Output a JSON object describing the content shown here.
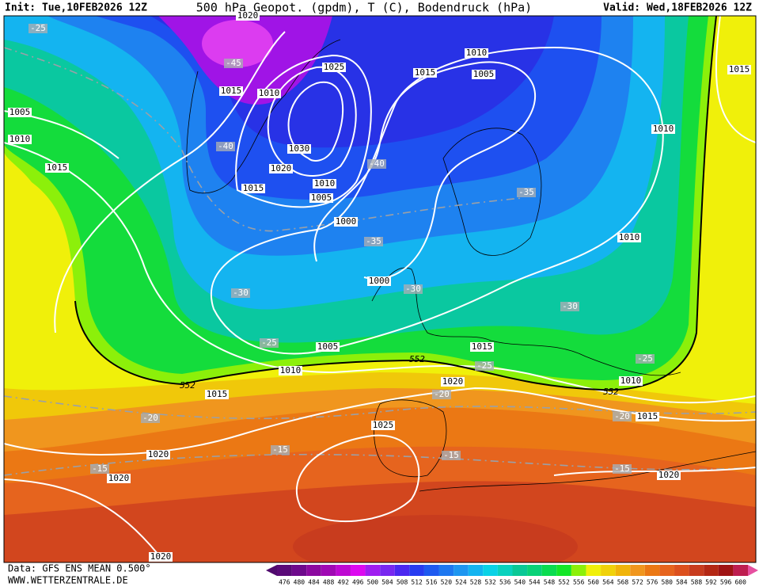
{
  "header": {
    "init": "Init: Tue,10FEB2026 12Z",
    "title": "500 hPa Geopot. (gpdm), T (C), Bodendruck (hPa)",
    "valid": "Valid: Wed,18FEB2026 12Z"
  },
  "isobar_labels": [
    1020,
    1015,
    1010,
    1025,
    1030,
    1020,
    1015,
    1010,
    1005,
    1000,
    1015,
    1010,
    1005,
    1015,
    1005,
    1010,
    1015,
    1010,
    1010,
    1000,
    1005,
    1010,
    1015,
    1015,
    1020,
    1010,
    1015,
    1025,
    1020,
    1020,
    1020,
    1020
  ],
  "temperature_labels": [
    -25,
    -45,
    -40,
    -40,
    -35,
    -35,
    -30,
    -30,
    -30,
    -25,
    -25,
    -25,
    -20,
    -20,
    -20,
    -15,
    -15,
    -15,
    -15
  ],
  "geopotential_labels": [
    552,
    552,
    552
  ],
  "color_scale": {
    "values": [
      476,
      480,
      484,
      488,
      492,
      496,
      500,
      504,
      508,
      512,
      516,
      520,
      524,
      528,
      532,
      536,
      540,
      544,
      548,
      552,
      556,
      560,
      564,
      568,
      572,
      576,
      580,
      584,
      588,
      592,
      596,
      600
    ],
    "colors": [
      "#5a0a78",
      "#6e0a8c",
      "#8c0aa0",
      "#a00ab4",
      "#be0ad2",
      "#dc0af0",
      "#a01ef0",
      "#7828f0",
      "#4b28f0",
      "#283cf0",
      "#1e5af0",
      "#1e78f0",
      "#1e96f0",
      "#14b4f0",
      "#0ad2e6",
      "#0ad2be",
      "#0ac896",
      "#0ad278",
      "#0adc50",
      "#14e628",
      "#8cf00a",
      "#f0f00a",
      "#f0d20a",
      "#f0b40a",
      "#f0961e",
      "#eb7814",
      "#e6641e",
      "#dc501e",
      "#c83c1e",
      "#b42814",
      "#a01414",
      "#be1e50"
    ]
  },
  "footer": {
    "source": "Data: GFS ENS MEAN 0.500°",
    "site": "WWW.WETTERZENTRALE.DE"
  }
}
